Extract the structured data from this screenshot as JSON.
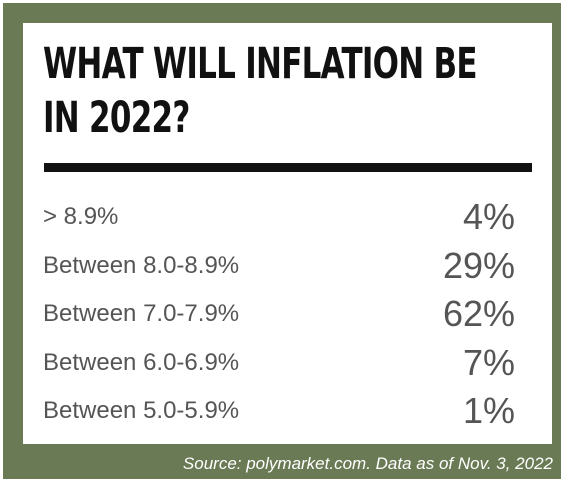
{
  "colors": {
    "frame": "#6a7a55",
    "card": "#ffffff",
    "title": "#111111",
    "text": "#555555",
    "source": "#ffffff"
  },
  "chart_data": {
    "type": "table",
    "title_lines": [
      "WHAT WILL INFLATION BE",
      "IN 2022?"
    ],
    "categories": [
      "> 8.9%",
      "Between 8.0-8.9%",
      "Between 7.0-7.9%",
      "Between 6.0-6.9%",
      "Between 5.0-5.9%"
    ],
    "values": [
      4,
      29,
      62,
      7,
      1
    ],
    "value_labels": [
      "4%",
      "29%",
      "62%",
      "7%",
      "1%"
    ],
    "source": "Source: polymarket.com. Data as of Nov. 3, 2022"
  }
}
